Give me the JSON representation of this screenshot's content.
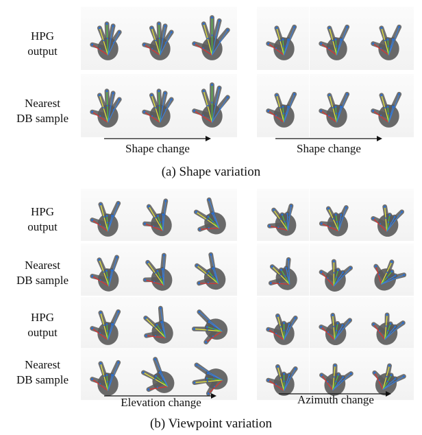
{
  "shape_panel": {
    "row_labels": [
      {
        "line1": "HPG",
        "line2": "output"
      },
      {
        "line1": "Nearest",
        "line2": "DB sample"
      }
    ],
    "arrow_labels": [
      "Shape change",
      "Shape change"
    ],
    "caption": "(a) Shape variation"
  },
  "viewpoint_panel": {
    "row_labels": [
      {
        "line1": "HPG",
        "line2": "output"
      },
      {
        "line1": "Nearest",
        "line2": "DB sample"
      },
      {
        "line1": "HPG",
        "line2": "output"
      },
      {
        "line1": "Nearest",
        "line2": "DB sample"
      }
    ],
    "arrow_labels": [
      "Elevation change",
      "Azimuth change"
    ],
    "caption": "(b) Viewpoint variation"
  },
  "colors": {
    "hand_gray": "#5a5a5a",
    "thumb": "#e0302f",
    "finger_yellow": "#e8e83a",
    "finger_green": "#4fc23f",
    "finger_blue": "#3d7fd6"
  }
}
